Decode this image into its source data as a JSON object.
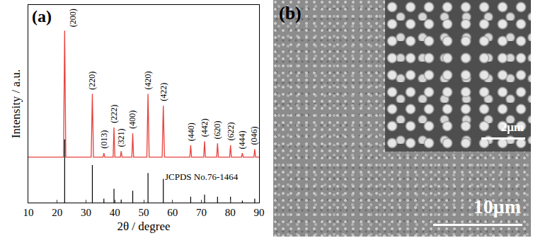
{
  "chart_data": {
    "type": "line",
    "panel_label": "(a)",
    "xlabel": "2θ / degree",
    "ylabel": "Intensity / a.u.",
    "xlim": [
      10,
      90
    ],
    "xticks": [
      10,
      20,
      30,
      40,
      50,
      60,
      70,
      80,
      90
    ],
    "ylim": [
      0,
      100
    ],
    "tick_labels": "x",
    "grid": false,
    "pattern": {
      "color": "#e8413c",
      "x": [
        10,
        22.2,
        22.6,
        23.0,
        31.8,
        32.2,
        32.6,
        35.9,
        36.2,
        36.5,
        39.4,
        39.7,
        40.0,
        41.9,
        42.2,
        42.5,
        45.9,
        46.2,
        46.5,
        51.1,
        51.5,
        51.9,
        56.4,
        56.8,
        57.2,
        66.0,
        66.3,
        66.6,
        70.8,
        71.1,
        71.4,
        75.3,
        75.6,
        75.9,
        79.8,
        80.1,
        80.4,
        83.9,
        84.2,
        84.5,
        88.2,
        88.5,
        88.8,
        90
      ],
      "y": [
        23,
        23,
        87,
        23,
        23,
        55,
        23,
        23,
        25,
        23,
        23,
        38,
        23,
        23,
        26,
        23,
        23,
        35,
        23,
        23,
        55,
        23,
        23,
        49,
        23,
        23,
        29,
        23,
        23,
        31,
        23,
        23,
        30,
        23,
        23,
        29,
        23,
        23,
        25,
        23,
        23,
        27,
        23,
        23
      ]
    },
    "reference": {
      "name": "JCPDS No.76-1464",
      "color": "#000000",
      "x": [
        22.6,
        32.2,
        36.2,
        39.7,
        42.2,
        46.2,
        51.5,
        56.8,
        66.3,
        71.1,
        75.6,
        80.1,
        84.2,
        88.5
      ],
      "values": [
        32,
        19,
        2,
        7,
        1.5,
        6,
        15,
        12,
        3,
        4,
        3,
        3,
        1,
        2
      ]
    },
    "peak_labels": [
      {
        "x": 22.6,
        "y": 87,
        "label": "(200)"
      },
      {
        "x": 32.2,
        "y": 55,
        "label": "(220)"
      },
      {
        "x": 36.2,
        "y": 25,
        "label": "(013)"
      },
      {
        "x": 39.7,
        "y": 38,
        "label": "(222)"
      },
      {
        "x": 42.2,
        "y": 26,
        "label": "(321)"
      },
      {
        "x": 46.2,
        "y": 35,
        "label": "(400)"
      },
      {
        "x": 51.5,
        "y": 55,
        "label": "(420)"
      },
      {
        "x": 56.8,
        "y": 49,
        "label": "(422)"
      },
      {
        "x": 66.3,
        "y": 29,
        "label": "(440)"
      },
      {
        "x": 71.1,
        "y": 31,
        "label": "(442)"
      },
      {
        "x": 75.6,
        "y": 30,
        "label": "(620)"
      },
      {
        "x": 80.1,
        "y": 29,
        "label": "(622)"
      },
      {
        "x": 84.2,
        "y": 25,
        "label": "(444)"
      },
      {
        "x": 88.5,
        "y": 27,
        "label": "(046)"
      }
    ]
  },
  "image_panel": {
    "panel_label": "(b)",
    "scale_bar": "10μm",
    "inset_scale_bar": "2μm"
  }
}
